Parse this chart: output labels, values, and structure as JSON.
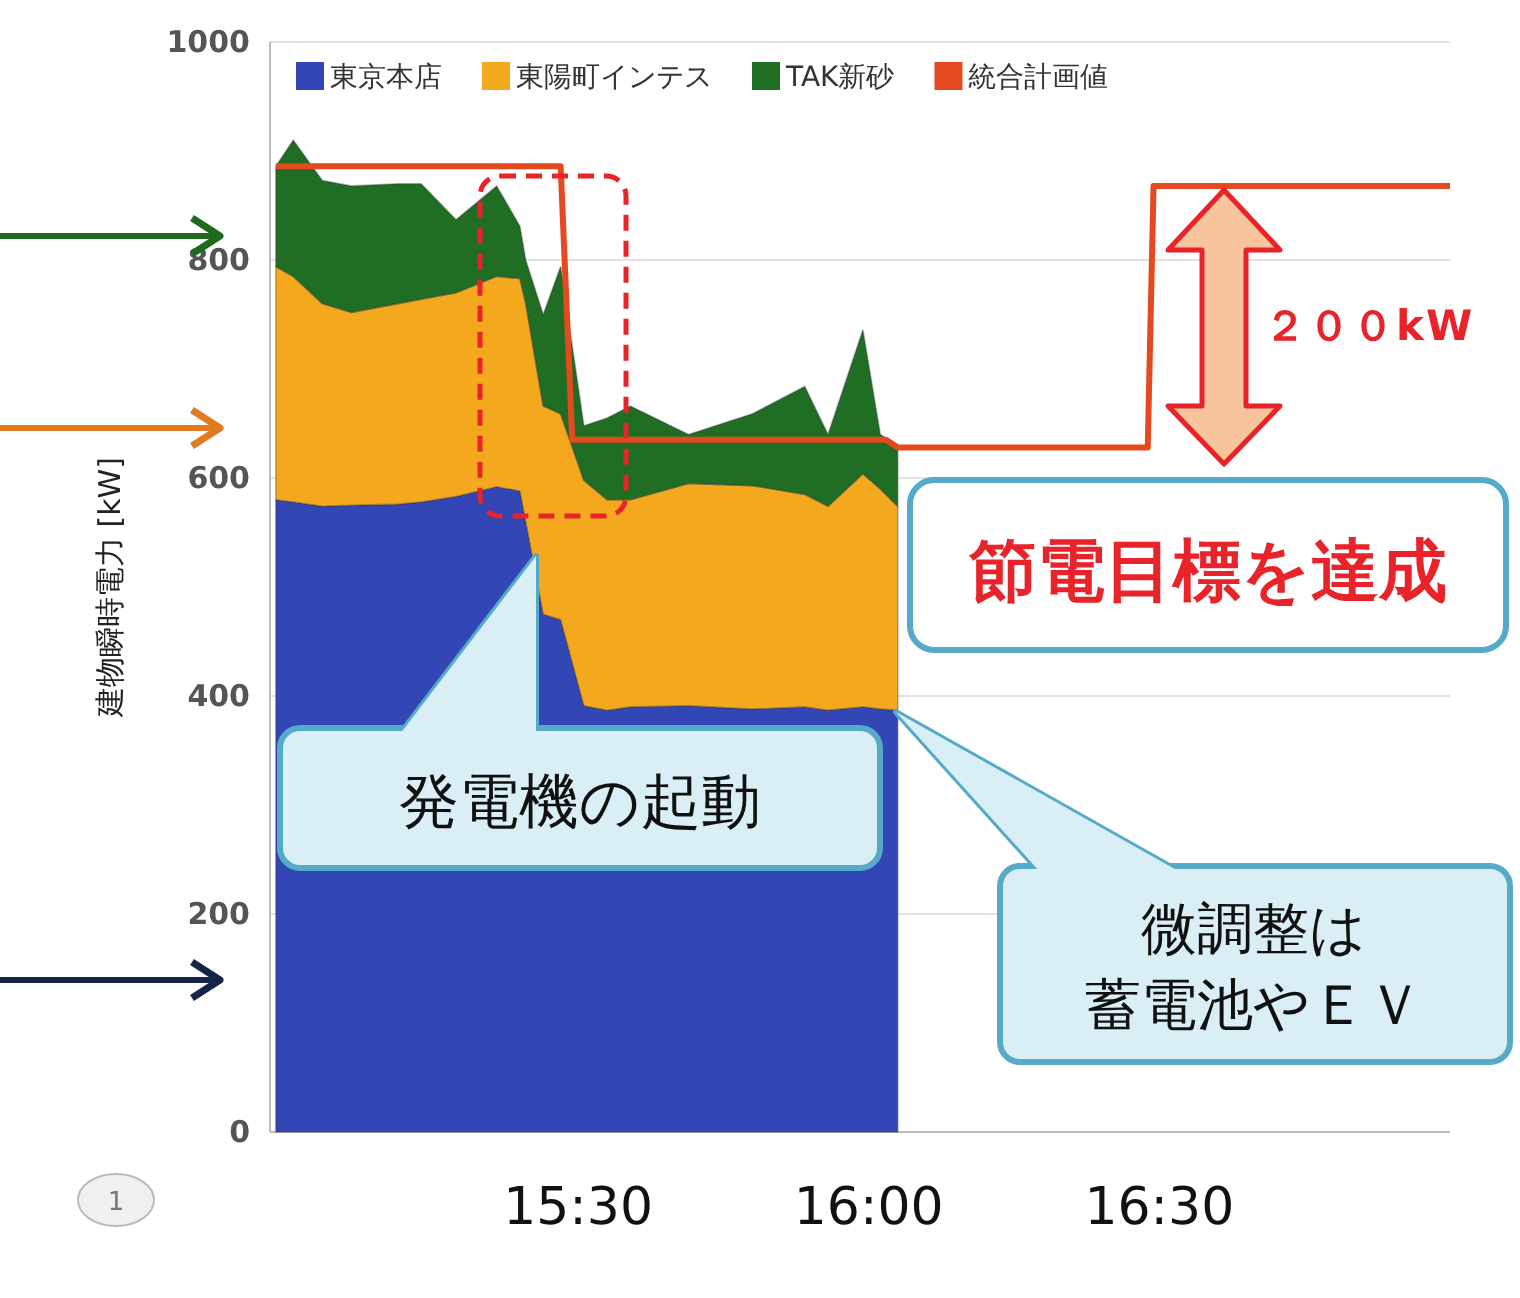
{
  "chart_data": {
    "type": "area",
    "stacked": true,
    "ylabel": "建物瞬時電力 [kW]",
    "x": [
      14.98,
      15.01,
      15.06,
      15.11,
      15.19,
      15.23,
      15.29,
      15.36,
      15.4,
      15.41,
      15.44,
      15.47,
      15.51,
      15.55,
      15.59,
      15.69,
      15.8,
      15.89,
      15.93,
      15.99,
      16.02,
      16.05
    ],
    "xlim": [
      14.97,
      17.0
    ],
    "xticks": [
      {
        "value": 15.5,
        "label": "15:30"
      },
      {
        "value": 16,
        "label": "16:00"
      },
      {
        "value": 16.5,
        "label": "16:30"
      }
    ],
    "ylim": [
      0,
      1000
    ],
    "yticks": [
      0,
      200,
      400,
      600,
      800,
      1000
    ],
    "grid": "y",
    "legend": "top",
    "series": [
      {
        "name": "東京本店",
        "color": "#3346b5",
        "values": [
          580,
          578,
          574,
          575,
          576,
          578,
          583,
          592,
          588,
          560,
          475,
          470,
          391,
          387,
          390,
          391,
          388,
          390,
          387,
          390,
          388,
          387
        ]
      },
      {
        "name": "東陽町インテス",
        "color": "#f4a81e",
        "values": [
          214,
          207,
          186,
          177,
          184,
          186,
          187,
          193,
          195,
          200,
          191,
          189,
          207,
          193,
          190,
          204,
          205,
          195,
          187,
          214,
          202,
          187
        ]
      },
      {
        "name": "TAK新砂",
        "color": "#1f6e24",
        "values": [
          92,
          125,
          113,
          116,
          110,
          106,
          67,
          83,
          48,
          40,
          84,
          135,
          50,
          75,
          86,
          45,
          66,
          99,
          66,
          132,
          50,
          56
        ]
      },
      {
        "name": "統合計画値",
        "type": "line",
        "color": "#e4491f",
        "x": [
          14.98,
          15.47,
          15.49,
          16.03,
          16.05,
          16.48,
          16.49,
          17.0
        ],
        "values": [
          886,
          886,
          635,
          635,
          628,
          628,
          868,
          868
        ]
      }
    ],
    "annotations": [
      "発電機の起動",
      "微調整は",
      "蓄電池やＥＶ",
      "２００kW",
      "節電目標を達成",
      "1"
    ]
  }
}
